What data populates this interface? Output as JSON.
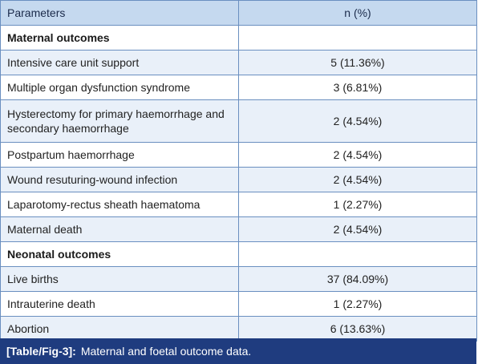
{
  "table": {
    "headers": {
      "param": "Parameters",
      "value": "n (%)"
    },
    "sections": [
      {
        "title": "Maternal outcomes",
        "rows": [
          {
            "param": "Intensive care unit support",
            "value": "5 (11.36%)"
          },
          {
            "param": "Multiple organ dysfunction syndrome",
            "value": "3 (6.81%)"
          },
          {
            "param": "Hysterectomy for primary haemorrhage and secondary haemorrhage",
            "value": "2 (4.54%)"
          },
          {
            "param": "Postpartum haemorrhage",
            "value": "2 (4.54%)"
          },
          {
            "param": "Wound resuturing-wound infection",
            "value": "2 (4.54%)"
          },
          {
            "param": "Laparotomy-rectus sheath haematoma",
            "value": "1 (2.27%)"
          },
          {
            "param": "Maternal death",
            "value": "2 (4.54%)"
          }
        ]
      },
      {
        "title": "Neonatal outcomes",
        "rows": [
          {
            "param": "Live births",
            "value": "37 (84.09%)"
          },
          {
            "param": "Intrauterine death",
            "value": "1 (2.27%)"
          },
          {
            "param": "Abortion",
            "value": "6 (13.63%)"
          }
        ]
      }
    ]
  },
  "caption": {
    "label": "[Table/Fig-3]:",
    "text": "Maternal and foetal outcome data."
  }
}
